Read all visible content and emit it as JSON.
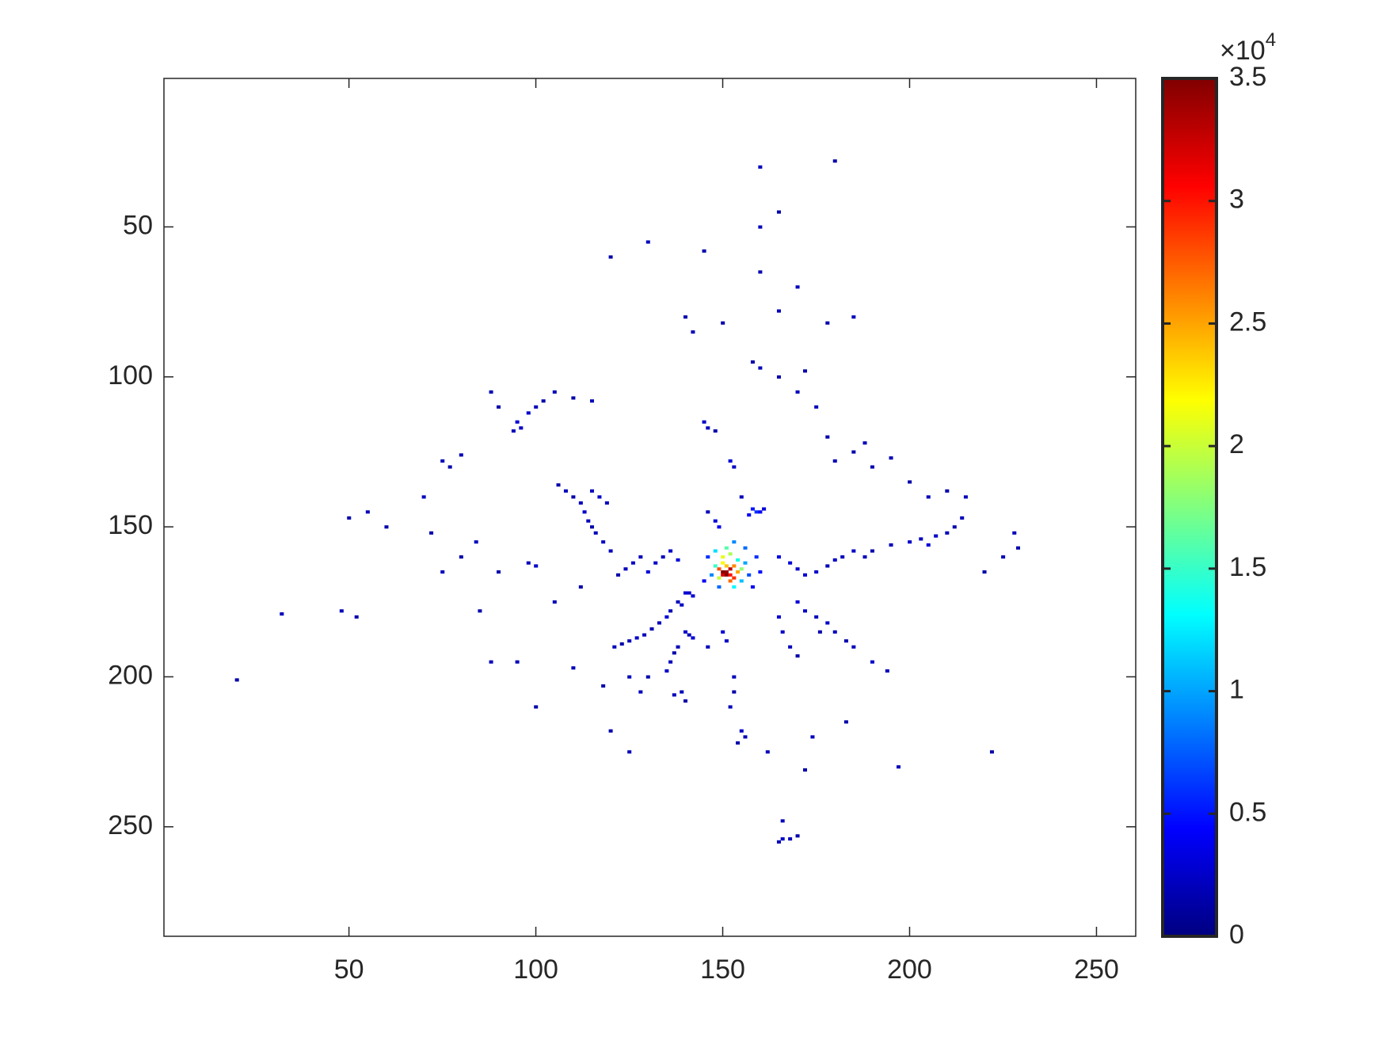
{
  "chart_data": {
    "type": "heatmap",
    "colormap": "jet",
    "xlim": [
      0.5,
      260.5
    ],
    "ylim": [
      0.5,
      286.5
    ],
    "y_reversed": true,
    "xticks": [
      50,
      100,
      150,
      200,
      250
    ],
    "yticks": [
      50,
      100,
      150,
      200,
      250
    ],
    "clim": [
      0,
      35000
    ],
    "colorbar_ticks": [
      {
        "value": 0,
        "label": "0"
      },
      {
        "value": 5000,
        "label": "0.5"
      },
      {
        "value": 10000,
        "label": "1"
      },
      {
        "value": 15000,
        "label": "1.5"
      },
      {
        "value": 20000,
        "label": "2"
      },
      {
        "value": 25000,
        "label": "2.5"
      },
      {
        "value": 30000,
        "label": "3"
      },
      {
        "value": 35000,
        "label": "3.5"
      }
    ],
    "colorbar_multiplier": {
      "base": "×10",
      "exponent": "4"
    },
    "cells": [
      [
        150,
        165,
        35000
      ],
      [
        151,
        165,
        34000
      ],
      [
        152,
        164,
        33000
      ],
      [
        151,
        166,
        35000
      ],
      [
        150,
        166,
        32000
      ],
      [
        152,
        166,
        30000
      ],
      [
        149,
        164,
        28000
      ],
      [
        153,
        163,
        26000
      ],
      [
        151,
        163,
        24000
      ],
      [
        150,
        162,
        22000
      ],
      [
        153,
        167,
        29000
      ],
      [
        152,
        168,
        27000
      ],
      [
        149,
        167,
        20000
      ],
      [
        154,
        165,
        25000
      ],
      [
        155,
        164,
        18000
      ],
      [
        148,
        163,
        15000
      ],
      [
        150,
        160,
        21000
      ],
      [
        152,
        159,
        19000
      ],
      [
        154,
        161,
        14000
      ],
      [
        148,
        158,
        12000
      ],
      [
        151,
        157,
        16000
      ],
      [
        155,
        168,
        11000
      ],
      [
        153,
        170,
        13000
      ],
      [
        147,
        166,
        9000
      ],
      [
        156,
        162,
        10000
      ],
      [
        149,
        170,
        8000
      ],
      [
        157,
        166,
        7000
      ],
      [
        146,
        160,
        6000
      ],
      [
        153,
        155,
        9000
      ],
      [
        156,
        157,
        8000
      ],
      [
        159,
        160,
        6000
      ],
      [
        160,
        165,
        5000
      ],
      [
        158,
        170,
        4000
      ],
      [
        145,
        168,
        4000
      ],
      [
        158,
        144,
        5000
      ],
      [
        159,
        145,
        6000
      ],
      [
        160,
        145,
        4000
      ],
      [
        161,
        144,
        3000
      ],
      [
        157,
        146,
        4000
      ],
      [
        140,
        172,
        3000
      ],
      [
        141,
        172,
        2500
      ],
      [
        142,
        173,
        3000
      ],
      [
        138,
        175,
        2000
      ],
      [
        139,
        176,
        2500
      ],
      [
        136,
        178,
        2000
      ],
      [
        135,
        180,
        3000
      ],
      [
        133,
        182,
        2000
      ],
      [
        131,
        184,
        1500
      ],
      [
        129,
        186,
        2000
      ],
      [
        127,
        187,
        2500
      ],
      [
        125,
        188,
        2000
      ],
      [
        123,
        189,
        1500
      ],
      [
        121,
        190,
        2000
      ],
      [
        140,
        185,
        2500
      ],
      [
        141,
        186,
        2000
      ],
      [
        142,
        187,
        3000
      ],
      [
        138,
        190,
        2000
      ],
      [
        137,
        192,
        1500
      ],
      [
        136,
        195,
        2000
      ],
      [
        135,
        198,
        2500
      ],
      [
        139,
        205,
        2000
      ],
      [
        140,
        208,
        1500
      ],
      [
        137,
        206,
        2000
      ],
      [
        153,
        200,
        2000
      ],
      [
        153,
        205,
        1500
      ],
      [
        152,
        210,
        2000
      ],
      [
        155,
        218,
        2500
      ],
      [
        156,
        220,
        2000
      ],
      [
        154,
        222,
        1500
      ],
      [
        150,
        185,
        3000
      ],
      [
        151,
        188,
        2500
      ],
      [
        146,
        190,
        2000
      ],
      [
        128,
        160,
        2000
      ],
      [
        126,
        162,
        2500
      ],
      [
        124,
        164,
        2000
      ],
      [
        122,
        166,
        1500
      ],
      [
        120,
        158,
        2000
      ],
      [
        118,
        155,
        2500
      ],
      [
        116,
        152,
        2000
      ],
      [
        115,
        150,
        1500
      ],
      [
        114,
        148,
        2000
      ],
      [
        113,
        145,
        2500
      ],
      [
        112,
        142,
        2000
      ],
      [
        110,
        140,
        1500
      ],
      [
        108,
        138,
        2000
      ],
      [
        106,
        136,
        1500
      ],
      [
        115,
        138,
        2000
      ],
      [
        117,
        140,
        2500
      ],
      [
        119,
        142,
        2000
      ],
      [
        130,
        165,
        3000
      ],
      [
        132,
        162,
        2500
      ],
      [
        134,
        160,
        2000
      ],
      [
        136,
        158,
        2500
      ],
      [
        138,
        161,
        3000
      ],
      [
        165,
        160,
        3500
      ],
      [
        168,
        162,
        3000
      ],
      [
        170,
        164,
        2500
      ],
      [
        172,
        166,
        3000
      ],
      [
        175,
        165,
        2500
      ],
      [
        178,
        163,
        2000
      ],
      [
        180,
        161,
        2500
      ],
      [
        182,
        160,
        2000
      ],
      [
        185,
        158,
        2500
      ],
      [
        188,
        160,
        2000
      ],
      [
        190,
        158,
        1500
      ],
      [
        195,
        156,
        2000
      ],
      [
        200,
        155,
        2500
      ],
      [
        203,
        154,
        2000
      ],
      [
        205,
        156,
        3000
      ],
      [
        207,
        153,
        2500
      ],
      [
        210,
        152,
        2000
      ],
      [
        212,
        150,
        1500
      ],
      [
        214,
        147,
        2000
      ],
      [
        170,
        175,
        3000
      ],
      [
        172,
        178,
        2500
      ],
      [
        175,
        180,
        2000
      ],
      [
        178,
        182,
        2500
      ],
      [
        180,
        185,
        2000
      ],
      [
        176,
        185,
        1500
      ],
      [
        165,
        180,
        3000
      ],
      [
        166,
        185,
        2500
      ],
      [
        168,
        190,
        2000
      ],
      [
        170,
        193,
        1500
      ],
      [
        185,
        190,
        2000
      ],
      [
        190,
        195,
        2500
      ],
      [
        194,
        198,
        2000
      ],
      [
        183,
        188,
        1500
      ],
      [
        95,
        115,
        3000
      ],
      [
        96,
        117,
        2500
      ],
      [
        94,
        118,
        2000
      ],
      [
        98,
        112,
        2500
      ],
      [
        100,
        110,
        2000
      ],
      [
        90,
        110,
        1500
      ],
      [
        88,
        105,
        2000
      ],
      [
        102,
        108,
        1500
      ],
      [
        105,
        105,
        2000
      ],
      [
        110,
        107,
        1500
      ],
      [
        115,
        108,
        2000
      ],
      [
        75,
        128,
        2000
      ],
      [
        77,
        130,
        1500
      ],
      [
        80,
        126,
        2000
      ],
      [
        145,
        115,
        2500
      ],
      [
        146,
        117,
        2000
      ],
      [
        148,
        118,
        1500
      ],
      [
        152,
        128,
        3000
      ],
      [
        153,
        130,
        2500
      ],
      [
        155,
        140,
        2000
      ],
      [
        148,
        148,
        3000
      ],
      [
        149,
        150,
        4000
      ],
      [
        146,
        145,
        2000
      ],
      [
        158,
        95,
        1500
      ],
      [
        160,
        97,
        2000
      ],
      [
        165,
        100,
        1500
      ],
      [
        170,
        105,
        2000
      ],
      [
        172,
        98,
        1500
      ],
      [
        175,
        110,
        2000
      ],
      [
        178,
        120,
        1500
      ],
      [
        180,
        128,
        2000
      ],
      [
        185,
        125,
        1500
      ],
      [
        188,
        122,
        2000
      ],
      [
        190,
        130,
        1500
      ],
      [
        195,
        127,
        2000
      ],
      [
        200,
        135,
        1500
      ],
      [
        205,
        140,
        2000
      ],
      [
        210,
        138,
        1500
      ],
      [
        215,
        140,
        2000
      ],
      [
        140,
        80,
        1500
      ],
      [
        142,
        85,
        2000
      ],
      [
        150,
        82,
        1500
      ],
      [
        165,
        78,
        2000
      ],
      [
        178,
        82,
        1500
      ],
      [
        185,
        80,
        2000
      ],
      [
        160,
        65,
        1500
      ],
      [
        170,
        70,
        2000
      ],
      [
        120,
        60,
        1500
      ],
      [
        130,
        55,
        2000
      ],
      [
        145,
        58,
        1500
      ],
      [
        160,
        50,
        2000
      ],
      [
        165,
        45,
        1500
      ],
      [
        160,
        30,
        2000
      ],
      [
        180,
        28,
        1500
      ],
      [
        128,
        205,
        2000
      ],
      [
        130,
        200,
        1500
      ],
      [
        125,
        200,
        2000
      ],
      [
        118,
        203,
        1500
      ],
      [
        110,
        197,
        2000
      ],
      [
        100,
        210,
        1500
      ],
      [
        95,
        195,
        2000
      ],
      [
        85,
        178,
        1500
      ],
      [
        88,
        195,
        2000
      ],
      [
        80,
        160,
        1500
      ],
      [
        75,
        165,
        2000
      ],
      [
        60,
        150,
        1500
      ],
      [
        55,
        145,
        2000
      ],
      [
        50,
        147,
        1500
      ],
      [
        32,
        179,
        2000
      ],
      [
        20,
        201,
        1500
      ],
      [
        48,
        178,
        2000
      ],
      [
        52,
        180,
        1500
      ],
      [
        70,
        140,
        2000
      ],
      [
        72,
        152,
        1500
      ],
      [
        165,
        255,
        2000
      ],
      [
        166,
        254,
        2500
      ],
      [
        168,
        254,
        2000
      ],
      [
        170,
        253,
        1500
      ],
      [
        166,
        248,
        2000
      ],
      [
        220,
        165,
        1500
      ],
      [
        225,
        160,
        2000
      ],
      [
        229,
        157,
        1500
      ],
      [
        228,
        152,
        2000
      ],
      [
        222,
        225,
        1500
      ],
      [
        197,
        230,
        2000
      ],
      [
        172,
        231,
        1500
      ],
      [
        162,
        225,
        2000
      ],
      [
        183,
        215,
        1500
      ],
      [
        174,
        220,
        2000
      ],
      [
        120,
        218,
        1500
      ],
      [
        125,
        225,
        2000
      ],
      [
        100,
        163,
        2500
      ],
      [
        98,
        162,
        2000
      ],
      [
        112,
        170,
        1500
      ],
      [
        105,
        175,
        2000
      ],
      [
        90,
        165,
        1500
      ],
      [
        84,
        155,
        2000
      ]
    ]
  }
}
